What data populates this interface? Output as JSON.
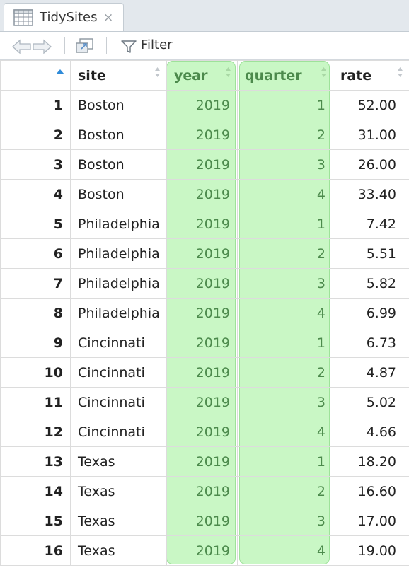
{
  "tab": {
    "title": "TidySites",
    "close": "×"
  },
  "toolbar": {
    "filter_label": "Filter"
  },
  "table": {
    "headers": {
      "site": "site",
      "year": "year",
      "quarter": "quarter",
      "rate": "rate"
    },
    "rows": [
      {
        "idx": "1",
        "site": "Boston",
        "year": "2019",
        "quarter": "1",
        "rate": "52.00"
      },
      {
        "idx": "2",
        "site": "Boston",
        "year": "2019",
        "quarter": "2",
        "rate": "31.00"
      },
      {
        "idx": "3",
        "site": "Boston",
        "year": "2019",
        "quarter": "3",
        "rate": "26.00"
      },
      {
        "idx": "4",
        "site": "Boston",
        "year": "2019",
        "quarter": "4",
        "rate": "33.40"
      },
      {
        "idx": "5",
        "site": "Philadelphia",
        "year": "2019",
        "quarter": "1",
        "rate": "7.42"
      },
      {
        "idx": "6",
        "site": "Philadelphia",
        "year": "2019",
        "quarter": "2",
        "rate": "5.51"
      },
      {
        "idx": "7",
        "site": "Philadelphia",
        "year": "2019",
        "quarter": "3",
        "rate": "5.82"
      },
      {
        "idx": "8",
        "site": "Philadelphia",
        "year": "2019",
        "quarter": "4",
        "rate": "6.99"
      },
      {
        "idx": "9",
        "site": "Cincinnati",
        "year": "2019",
        "quarter": "1",
        "rate": "6.73"
      },
      {
        "idx": "10",
        "site": "Cincinnati",
        "year": "2019",
        "quarter": "2",
        "rate": "4.87"
      },
      {
        "idx": "11",
        "site": "Cincinnati",
        "year": "2019",
        "quarter": "3",
        "rate": "5.02"
      },
      {
        "idx": "12",
        "site": "Cincinnati",
        "year": "2019",
        "quarter": "4",
        "rate": "4.66"
      },
      {
        "idx": "13",
        "site": "Texas",
        "year": "2019",
        "quarter": "1",
        "rate": "18.20"
      },
      {
        "idx": "14",
        "site": "Texas",
        "year": "2019",
        "quarter": "2",
        "rate": "16.60"
      },
      {
        "idx": "15",
        "site": "Texas",
        "year": "2019",
        "quarter": "3",
        "rate": "17.00"
      },
      {
        "idx": "16",
        "site": "Texas",
        "year": "2019",
        "quarter": "4",
        "rate": "19.00"
      }
    ]
  },
  "colors": {
    "highlight": "#c9f7c5",
    "highlight_text": "#4c8a4c",
    "sort_active": "#2f8bd9"
  },
  "icons": {
    "tab": "table-icon",
    "back": "back-arrow-icon",
    "forward": "forward-arrow-icon",
    "popout": "popout-icon",
    "filter": "filter-icon"
  }
}
